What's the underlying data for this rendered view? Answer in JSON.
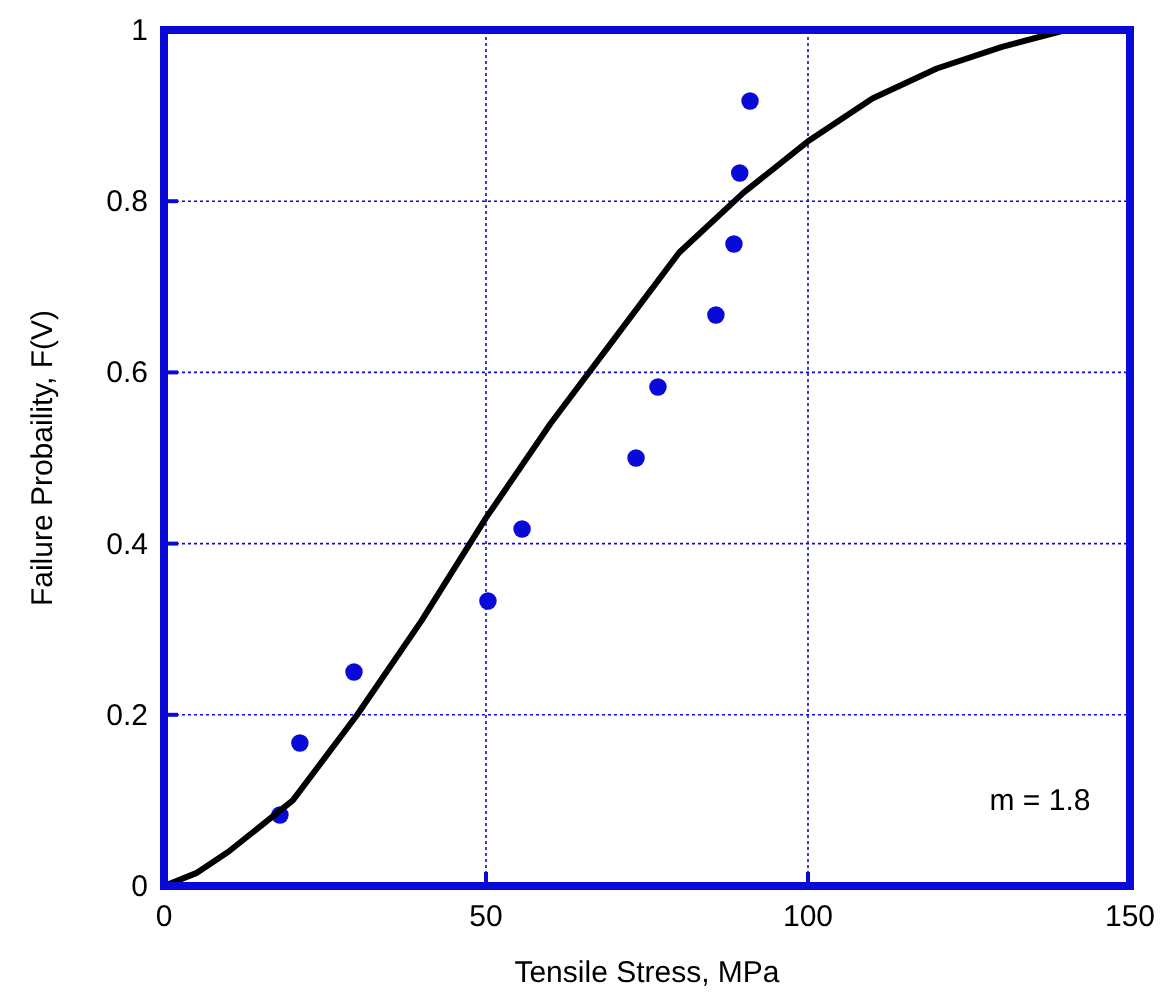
{
  "chart_data": {
    "type": "scatter",
    "xlabel": "Tensile Stress, MPa",
    "ylabel": "Failure Probaility, F(V)",
    "xlim": [
      0,
      150
    ],
    "ylim": [
      0,
      1
    ],
    "xticks": [
      0,
      50,
      100,
      150
    ],
    "yticks": [
      0,
      0.2,
      0.4,
      0.6,
      0.8,
      1
    ],
    "grid": true,
    "annotations": [
      "m = 1.8"
    ],
    "series": [
      {
        "color": "#0a0ad8",
        "marker": "circle",
        "x": [
          18,
          21.1,
          29.5,
          50.3,
          55.6,
          73.3,
          76.7,
          85.7,
          88.5,
          89.4,
          91
        ],
        "values": [
          0.083,
          0.167,
          0.25,
          0.333,
          0.417,
          0.5,
          0.583,
          0.667,
          0.75,
          0.833,
          0.917
        ]
      },
      {
        "type": "line",
        "color": "#000000",
        "marker": "none",
        "line_style": "solid",
        "x": [
          0,
          5,
          10,
          20,
          30,
          40,
          50,
          60,
          70,
          80,
          90,
          100,
          110,
          120,
          130,
          140
        ],
        "values": [
          0,
          0.015,
          0.04,
          0.1,
          0.2,
          0.31,
          0.43,
          0.54,
          0.64,
          0.74,
          0.81,
          0.87,
          0.92,
          0.955,
          0.98,
          1
        ]
      }
    ]
  }
}
